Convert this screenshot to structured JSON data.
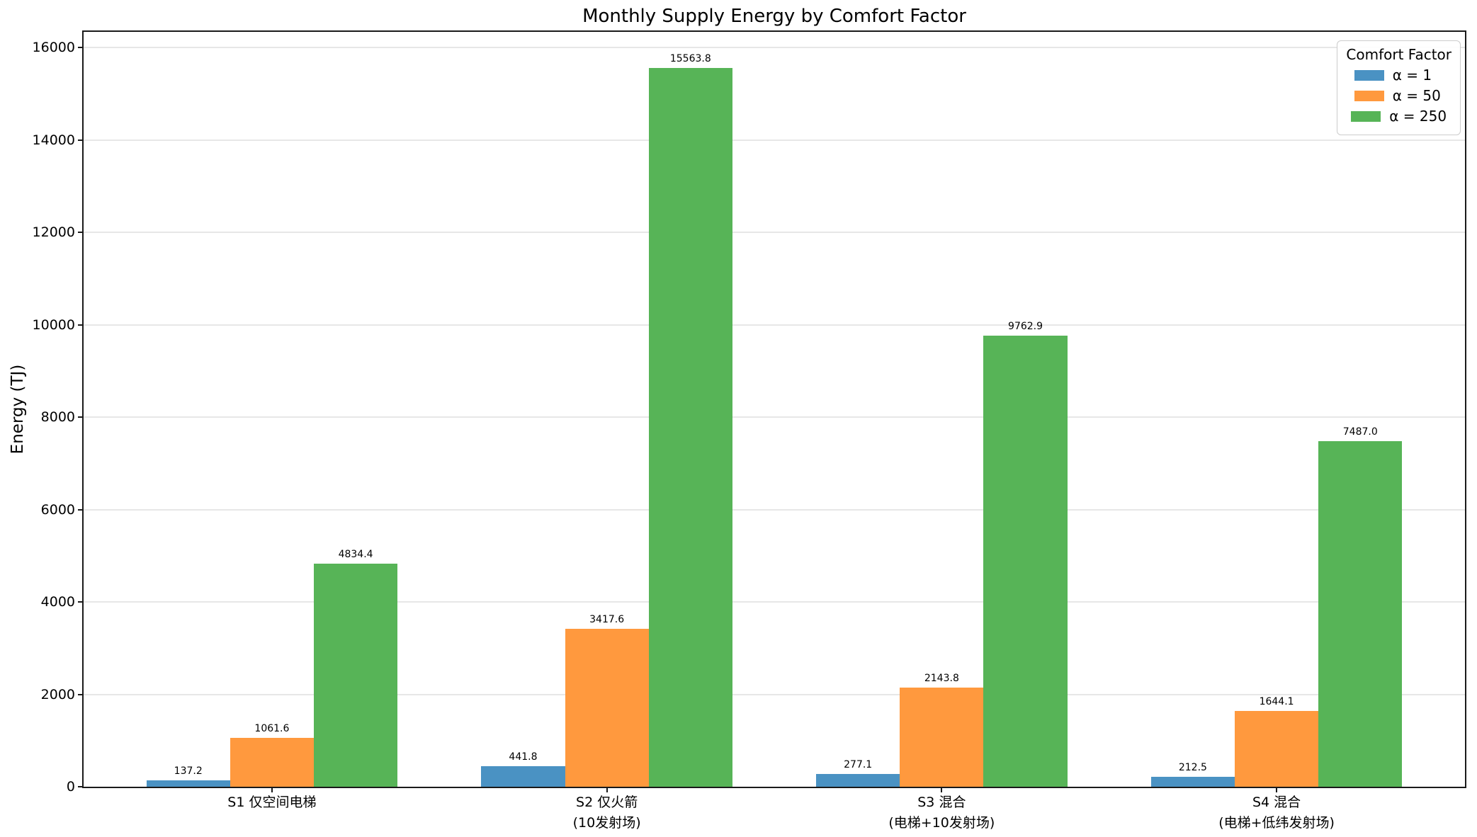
{
  "chart_data": {
    "type": "bar",
    "title": "Monthly Supply Energy by Comfort Factor",
    "xlabel": "",
    "ylabel": "Energy (TJ)",
    "categories": [
      {
        "id": "s1",
        "lines": [
          "S1 仅空间电梯"
        ]
      },
      {
        "id": "s2",
        "lines": [
          "S2 仅火箭",
          "(10发射场)"
        ]
      },
      {
        "id": "s3",
        "lines": [
          "S3 混合",
          "(电梯+10发射场)"
        ]
      },
      {
        "id": "s4",
        "lines": [
          "S4 混合",
          "(电梯+低纬发射场)"
        ]
      }
    ],
    "series": [
      {
        "id": "alpha1",
        "name": "α = 1",
        "color": "#4a92c3",
        "values": [
          137.2,
          441.8,
          277.1,
          212.5
        ]
      },
      {
        "id": "alpha50",
        "name": "α = 50",
        "color": "#ff993e",
        "values": [
          1061.6,
          3417.6,
          2143.8,
          1644.1
        ]
      },
      {
        "id": "alpha250",
        "name": "α = 250",
        "color": "#57b457",
        "values": [
          4834.4,
          15563.8,
          9762.9,
          7487.0
        ]
      }
    ],
    "legend": {
      "title": "Comfort Factor",
      "position": "upper right"
    },
    "yticks": [
      0,
      2000,
      4000,
      6000,
      8000,
      10000,
      12000,
      14000,
      16000
    ],
    "ylim": [
      0,
      16342
    ],
    "grid": true,
    "grid_color": "#e7e7e7",
    "value_label_decimals": 1
  }
}
